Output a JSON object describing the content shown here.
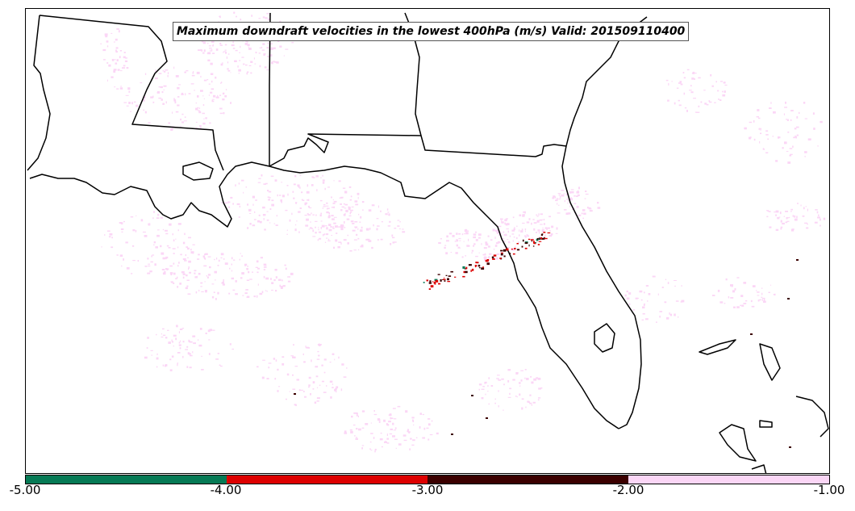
{
  "map": {
    "title": "Maximum downdraft velocities in the lowest 400hPa (m/s) Valid: 201509110400",
    "region": "US Gulf Coast and Florida",
    "background": "#ffffff",
    "land_outline_color": "#000000"
  },
  "colorbar": {
    "segments": [
      {
        "range": "-5.00 to -4.00",
        "color": "#067a55"
      },
      {
        "range": "-4.00 to -3.00",
        "color": "#dd0000"
      },
      {
        "range": "-3.00 to -2.00",
        "color": "#3b0000"
      },
      {
        "range": "-2.00 to -1.00",
        "color": "#fbd6f6"
      }
    ],
    "ticks": [
      "-5.00",
      "-4.00",
      "-3.00",
      "-2.00",
      "-1.00"
    ]
  }
}
